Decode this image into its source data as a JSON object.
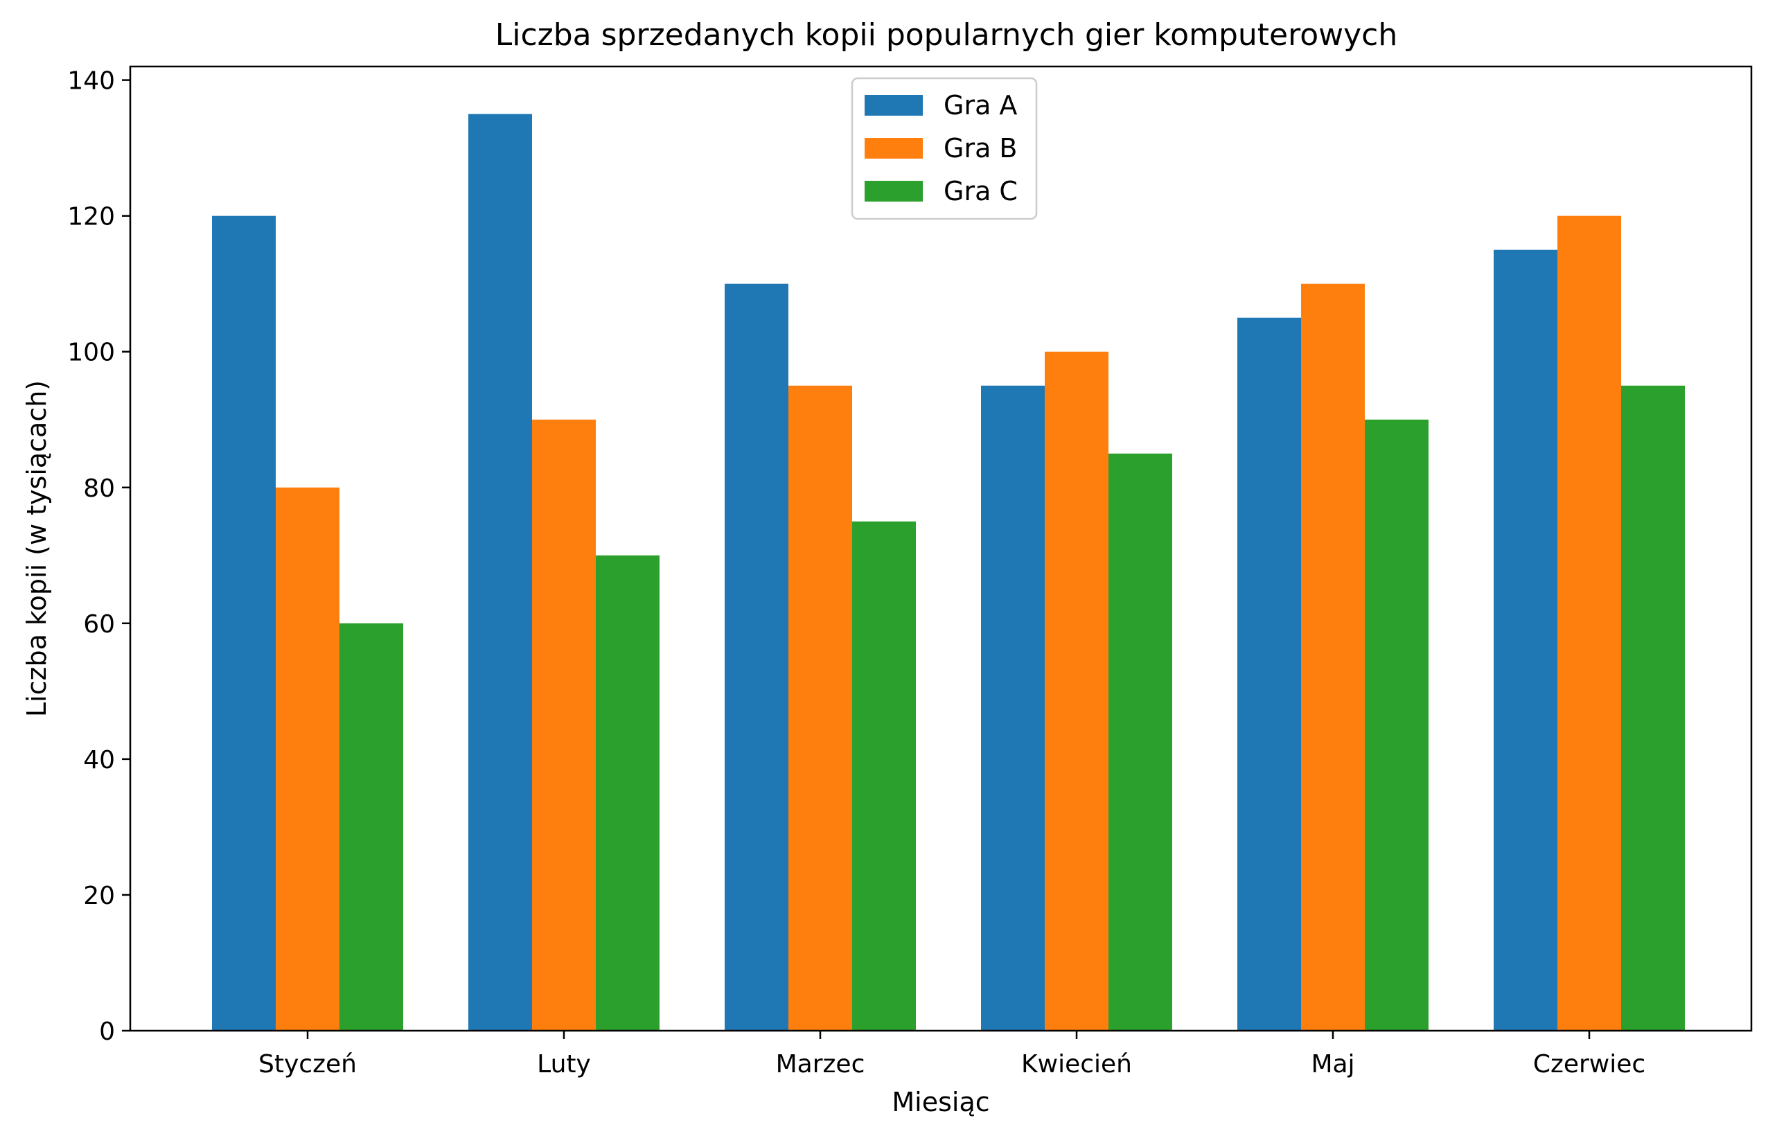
{
  "chart_data": {
    "type": "bar",
    "title": "Liczba sprzedanych kopii popularnych gier komputerowych",
    "xlabel": "Miesiąc",
    "ylabel": "Liczba kopii (w tysiącach)",
    "categories": [
      "Styczeń",
      "Luty",
      "Marzec",
      "Kwiecień",
      "Maj",
      "Czerwiec"
    ],
    "series": [
      {
        "name": "Gra A",
        "color": "#1f77b4",
        "values": [
          120,
          135,
          110,
          95,
          105,
          115
        ]
      },
      {
        "name": "Gra B",
        "color": "#ff7f0e",
        "values": [
          80,
          90,
          95,
          100,
          110,
          120
        ]
      },
      {
        "name": "Gra C",
        "color": "#2ca02c",
        "values": [
          60,
          70,
          75,
          85,
          90,
          95
        ]
      }
    ],
    "ylim": [
      0,
      142
    ],
    "yticks": [
      0,
      20,
      40,
      60,
      80,
      100,
      120,
      140
    ],
    "grid": false,
    "legend_position": "top-center"
  }
}
